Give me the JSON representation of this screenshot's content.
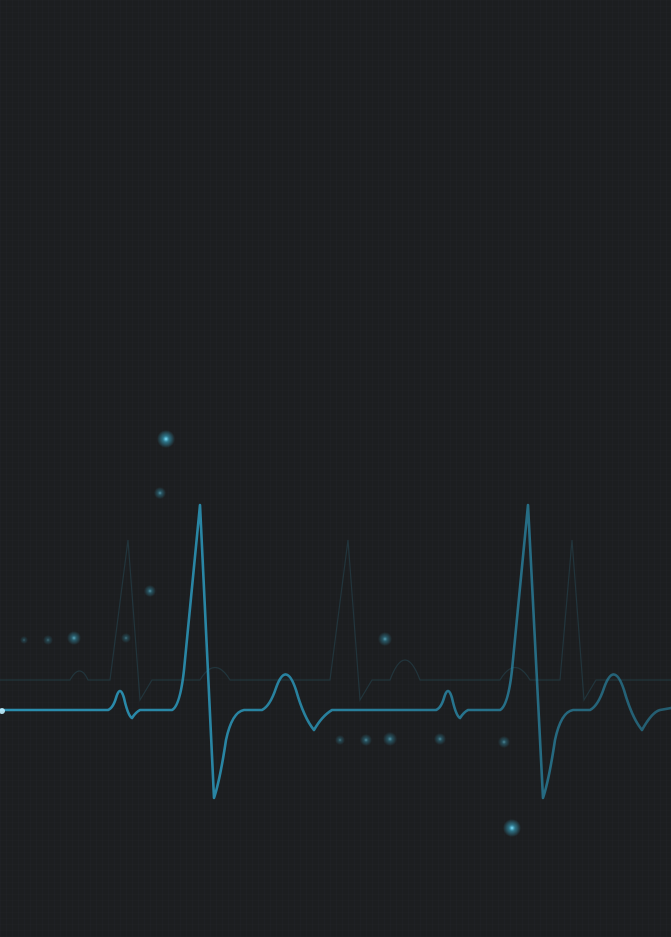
{
  "scene": {
    "background_color": "#1c1e20",
    "grid_color": "#23262a",
    "line_color": "#2a8fb0",
    "ghost_line_color": "#2a5f70",
    "glow_color": "#48c6e6"
  }
}
